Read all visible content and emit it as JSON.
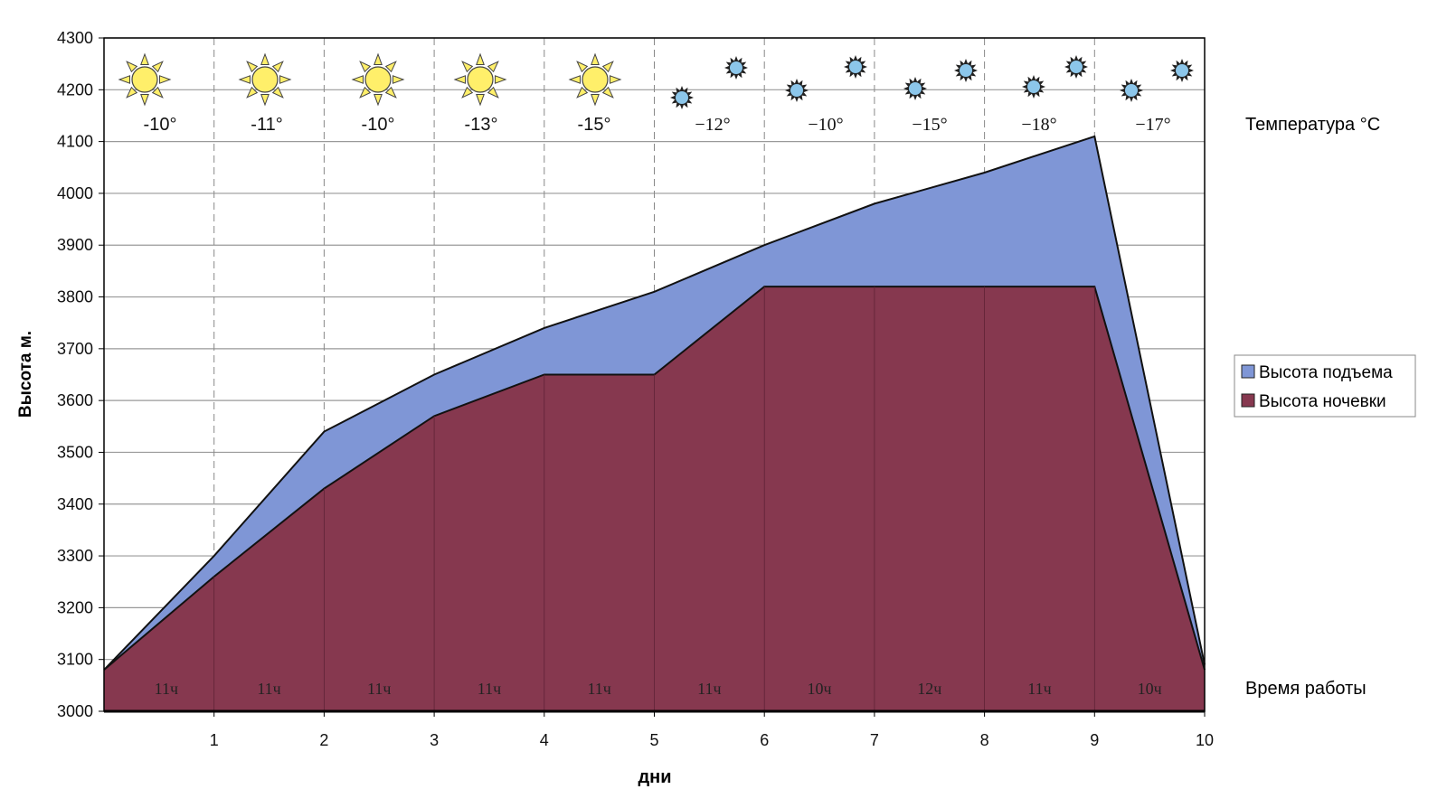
{
  "chart_data": {
    "type": "area",
    "xlabel": "дни",
    "ylabel": "Высота м.",
    "xlim": [
      0,
      10
    ],
    "ylim": [
      3000,
      4300
    ],
    "yticks": [
      3000,
      3100,
      3200,
      3300,
      3400,
      3500,
      3600,
      3700,
      3800,
      3900,
      4000,
      4100,
      4200,
      4300
    ],
    "xticks": [
      1,
      2,
      3,
      4,
      5,
      6,
      7,
      8,
      9,
      10
    ],
    "grid": {
      "horizontal": "solid",
      "vertical": "dashed"
    },
    "x": [
      0,
      1,
      2,
      3,
      4,
      5,
      6,
      7,
      8,
      9,
      10
    ],
    "series": [
      {
        "name": "Высота подъема",
        "color": "#7f96d6",
        "values": [
          3080,
          3300,
          3540,
          3650,
          3740,
          3810,
          3900,
          3980,
          4040,
          4110,
          3090
        ]
      },
      {
        "name": "Высота ночевки",
        "color": "#86384f",
        "values": [
          3080,
          3260,
          3430,
          3570,
          3650,
          3650,
          3820,
          3820,
          3820,
          3820,
          3080
        ]
      }
    ],
    "legend_position": "right",
    "temperature_label": "Температура °C",
    "temperatures": [
      "-10°",
      "-11°",
      "-10°",
      "-13°",
      "-15°",
      "−12°",
      "−10°",
      "−15°",
      "−18°",
      "−17°"
    ],
    "weather": [
      "sun-icon",
      "sun-icon",
      "sun-icon",
      "sun-icon",
      "sun-icon",
      "snowflake-icon",
      "snowflake-icon",
      "snowflake-icon",
      "snowflake-icon",
      "snowflake-icon"
    ],
    "work_time_label": "Время работы",
    "work_times": [
      "11ч",
      "11ч",
      "11ч",
      "11ч",
      "11ч",
      "11ч",
      "10ч",
      "12ч",
      "11ч",
      "10ч"
    ]
  }
}
